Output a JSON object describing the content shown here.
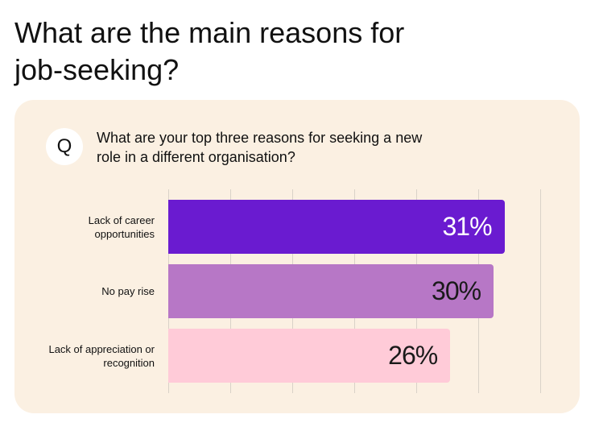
{
  "chart_data": {
    "type": "bar",
    "orientation": "horizontal",
    "title": "What are the main reasons for job-seeking?",
    "question_icon": "Q",
    "question": "What are your top three reasons for seeking a new role in a different organisation?",
    "categories": [
      "Lack of career opportunities",
      "No pay rise",
      "Lack of appreciation or recognition"
    ],
    "values": [
      31,
      30,
      26
    ],
    "value_labels": [
      "31%",
      "30%",
      "26%"
    ],
    "colors": [
      "#6a1bd0",
      "#b777c6",
      "#ffcbd8"
    ],
    "value_label_colors": [
      "#ffffff",
      "#1a1a1a",
      "#1a1a1a"
    ],
    "xlim": [
      0,
      34.3
    ],
    "grid": true
  }
}
